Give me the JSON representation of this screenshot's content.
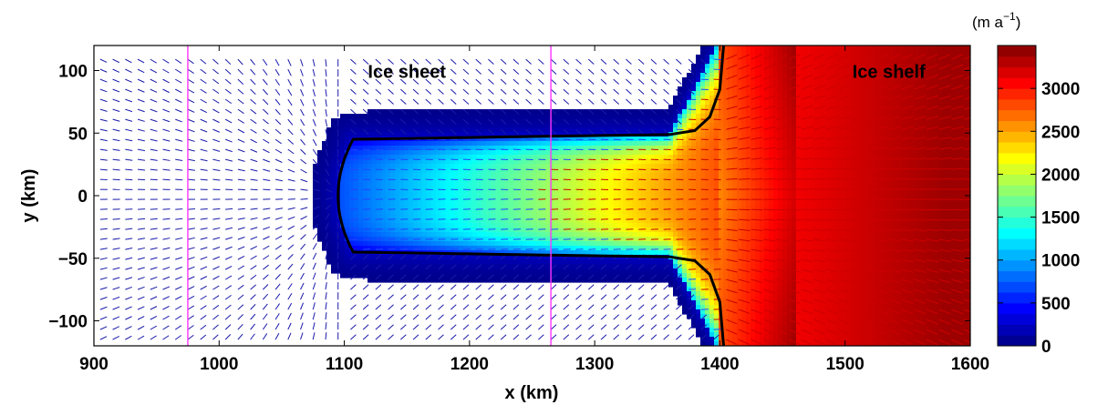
{
  "chart_data": {
    "type": "heatmap",
    "xlabel": "x (km)",
    "ylabel": "y (km)",
    "xlim": [
      900,
      1600
    ],
    "ylim": [
      -120,
      120
    ],
    "x_ticks": [
      900,
      1000,
      1100,
      1200,
      1300,
      1400,
      1500,
      1600
    ],
    "y_ticks": [
      -100,
      -50,
      0,
      50,
      100
    ],
    "y_tick_labels": [
      "−100",
      "−50",
      "0",
      "50",
      "100"
    ],
    "annotations": [
      {
        "text": "Ice sheet",
        "x": 1150,
        "y": 100
      },
      {
        "text": "Ice shelf",
        "x": 1535,
        "y": 100
      }
    ],
    "vertical_lines_x": [
      975,
      1265
    ],
    "vertical_line_color": "#ff33ff",
    "grounding_line_color": "#000000",
    "colorbar": {
      "unit": "(m a",
      "unit_exponent": "−1",
      "unit_close": ")",
      "range": [
        0,
        3500
      ],
      "ticks": [
        0,
        500,
        1000,
        1500,
        2000,
        2500,
        3000
      ],
      "colormap": "jet"
    },
    "speed_field": {
      "description_units": "m a^-1",
      "grounded_trunk_max": 1000,
      "trunk_front_x": 1095,
      "trunk_half_width": 45,
      "grounding_line_x": 1400,
      "shelf_max": 3400,
      "shelf_peak_x": 1460,
      "shelf_peak_y": 65
    }
  }
}
